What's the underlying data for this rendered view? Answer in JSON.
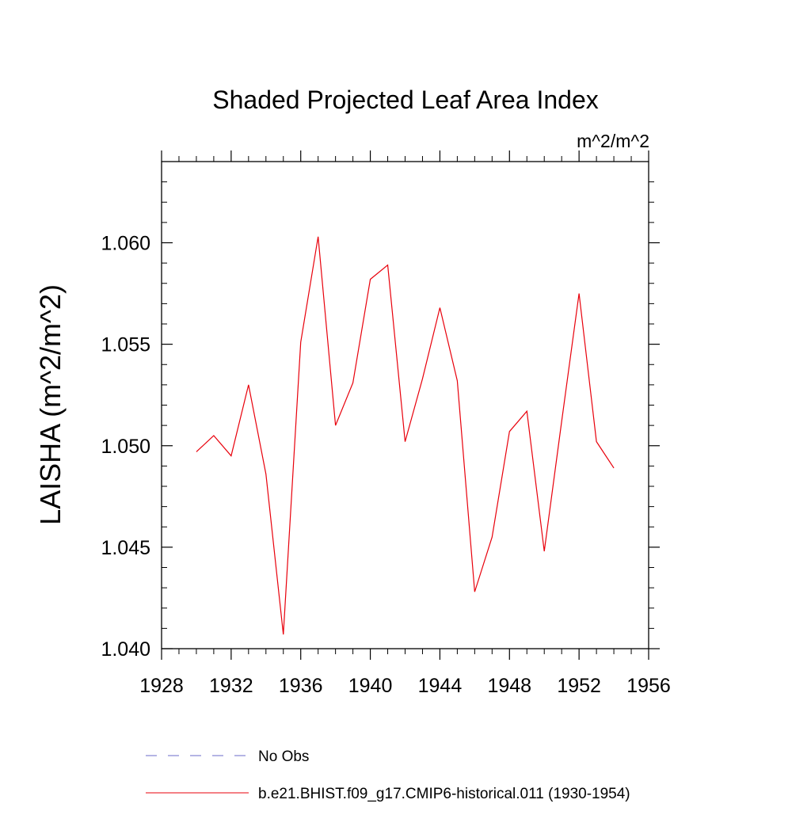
{
  "chart_data": {
    "type": "line",
    "title": "Shaded Projected Leaf Area Index",
    "units_label": "m^2/m^2",
    "xlabel": "",
    "ylabel": "LAISHA  (m^2/m^2)",
    "xlim": [
      1928,
      1956
    ],
    "ylim": [
      1.04,
      1.064
    ],
    "x_ticks": [
      1928,
      1932,
      1936,
      1940,
      1944,
      1948,
      1952,
      1956
    ],
    "x_tick_labels": [
      "1928",
      "1932",
      "1936",
      "1940",
      "1944",
      "1948",
      "1952",
      "1956"
    ],
    "y_ticks": [
      1.04,
      1.045,
      1.05,
      1.055,
      1.06
    ],
    "y_tick_labels": [
      "1.040",
      "1.045",
      "1.050",
      "1.055",
      "1.060"
    ],
    "grid": false,
    "legend_position": "bottom",
    "series": [
      {
        "name": "No Obs",
        "color": "#6b6bc9",
        "style": "dashed",
        "x": [],
        "y": []
      },
      {
        "name": "b.e21.BHIST.f09_g17.CMIP6-historical.011 (1930-1954)",
        "color": "#e8000b",
        "style": "solid",
        "x": [
          1930,
          1931,
          1932,
          1933,
          1934,
          1935,
          1936,
          1937,
          1938,
          1939,
          1940,
          1941,
          1942,
          1943,
          1944,
          1945,
          1946,
          1947,
          1948,
          1949,
          1950,
          1951,
          1952,
          1953,
          1954
        ],
        "y": [
          1.0497,
          1.0505,
          1.0495,
          1.053,
          1.0486,
          1.0407,
          1.0551,
          1.0603,
          1.051,
          1.0531,
          1.0582,
          1.0589,
          1.0502,
          1.0533,
          1.0568,
          1.0532,
          1.0428,
          1.0455,
          1.0507,
          1.0517,
          1.0448,
          1.0512,
          1.0575,
          1.0502,
          1.0489
        ]
      }
    ]
  }
}
